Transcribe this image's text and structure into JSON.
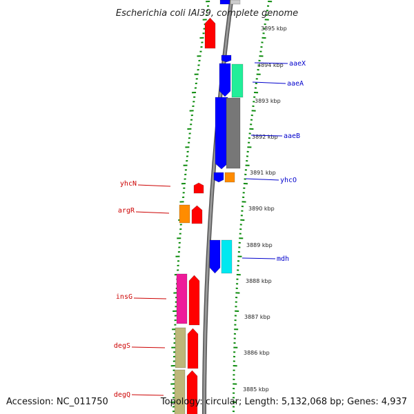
{
  "title": "Escherichia coli IAI39, complete genome",
  "footer": {
    "accession": "Accession: NC_011750",
    "topology": "Topology: circular; Length: 5,132,068 bp; Genes: 4,937"
  },
  "colors": {
    "red": "#ff0000",
    "blue": "#0000ff",
    "green": "#22ee99",
    "gray": "#777777",
    "orange": "#ff8c00",
    "cyan": "#00e8f0",
    "magenta": "#ee1a99",
    "khaki": "#bdb77a",
    "ticks": "#0a8a0a",
    "left_label": "#cc0000",
    "right_label": "#0000cc"
  },
  "kbp_ticks": [
    "3895 kbp",
    "3894 kbp",
    "3893 kbp",
    "3892 kbp",
    "3891 kbp",
    "3890 kbp",
    "3889 kbp",
    "3888 kbp",
    "3887 kbp",
    "3886 kbp",
    "3885 kbp"
  ],
  "genes_left": [
    {
      "name": "yhcN",
      "color": "red"
    },
    {
      "name": "argR",
      "color": "red"
    },
    {
      "name": "insG",
      "color": "magenta"
    },
    {
      "name": "degS",
      "color": "khaki"
    },
    {
      "name": "degQ",
      "color": "khaki"
    }
  ],
  "genes_right": [
    {
      "name": "aaeX",
      "color": "blue"
    },
    {
      "name": "aaeA",
      "color": "green"
    },
    {
      "name": "aaeB",
      "color": "gray"
    },
    {
      "name": "yhcO",
      "color": "orange"
    },
    {
      "name": "mdh",
      "color": "cyan"
    }
  ]
}
